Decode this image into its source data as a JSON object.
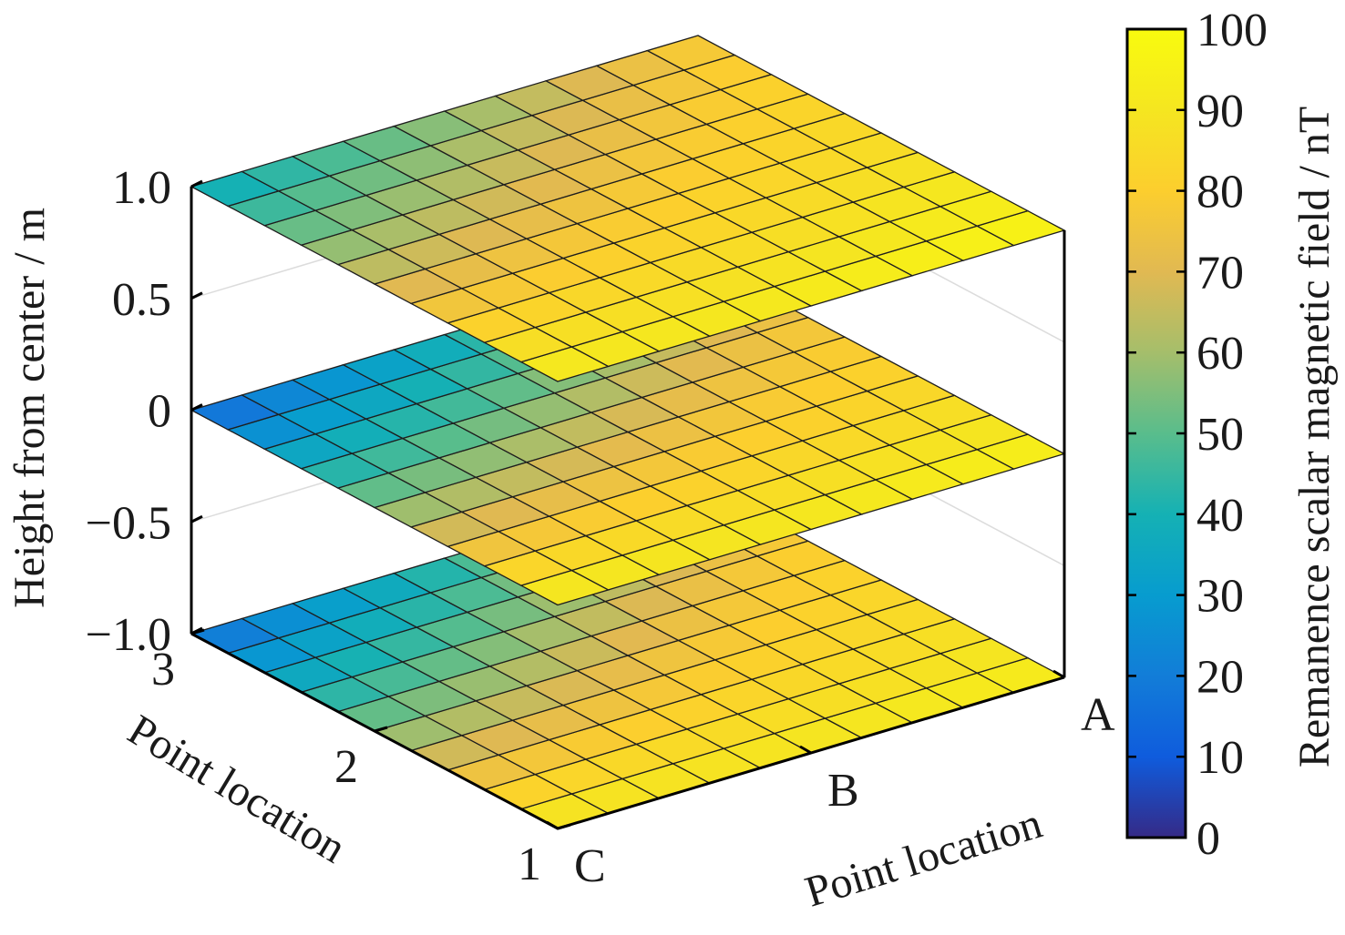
{
  "chart_data": {
    "type": "surface-3d-slices",
    "z_axis": {
      "label": "Height from center / m",
      "ticks": [
        -1.0,
        -0.5,
        0,
        0.5,
        1.0
      ],
      "tick_labels": [
        "−1.0",
        "−0.5",
        "0",
        "0.5",
        "1.0"
      ],
      "range": [
        -1.0,
        1.0
      ]
    },
    "y_axis": {
      "label": "Point location",
      "tick_labels": [
        "1",
        "2",
        "3"
      ]
    },
    "x_axis": {
      "label": "Point location",
      "tick_labels": [
        "C",
        "B",
        "A"
      ]
    },
    "colorbar": {
      "label": "Remanence scalar magnetic field / nT",
      "range": [
        0,
        100
      ],
      "ticks": [
        0,
        10,
        20,
        30,
        40,
        50,
        60,
        70,
        80,
        90,
        100
      ],
      "colormap": "parula"
    },
    "grid_size": 10,
    "slices": [
      {
        "height": -1.0,
        "corners": {
          "C1": 93,
          "C3": 14,
          "A1": 94,
          "A3": 70
        },
        "peak": {
          "value": 86,
          "position": 0.68,
          "width": 0.22
        }
      },
      {
        "height": 0.0,
        "corners": {
          "C1": 95,
          "C3": 12,
          "A1": 96,
          "A3": 62
        },
        "peak": {
          "value": 85,
          "position": 0.68,
          "width": 0.22
        }
      },
      {
        "height": 1.0,
        "corners": {
          "C1": 96,
          "C3": 35,
          "A1": 97,
          "A3": 76
        },
        "peak": {
          "value": 84,
          "position": 0.62,
          "width": 0.22
        }
      }
    ]
  }
}
